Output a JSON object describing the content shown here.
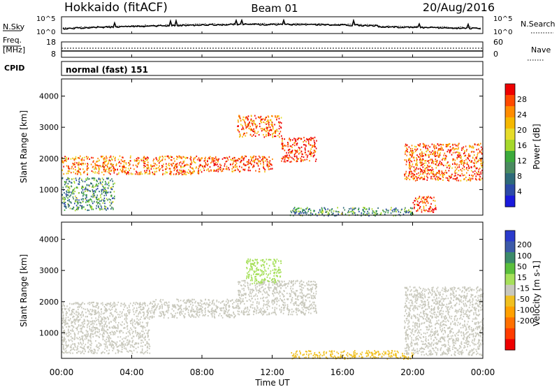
{
  "header": {
    "station": "Hokkaido (fitACF)",
    "beam": "Beam 01",
    "date": "20/Aug/2016"
  },
  "noise_panel": {
    "left_label": "N.Sky",
    "right_label": "N.Search",
    "ticks": [
      "10^5",
      "10^0"
    ]
  },
  "freq_panel": {
    "left_label_1": "Freq.",
    "left_label_2": "[MHz]",
    "left_ticks": [
      "18",
      "8"
    ],
    "right_label": "Nave",
    "right_ticks": [
      "60",
      "0"
    ]
  },
  "cpid_panel": {
    "label": "CPID",
    "mode": "normal (fast) 151"
  },
  "power_panel": {
    "ylabel": "Slant Range [km]",
    "colorbar_label": "Power [dB]",
    "colorbar_ticks": [
      "28",
      "24",
      "20",
      "16",
      "12",
      "8",
      "4"
    ],
    "colorbar_colors": [
      "#ee0000",
      "#ff4a00",
      "#ff8c00",
      "#f5b800",
      "#e6dc2a",
      "#a6d82c",
      "#3caa3c",
      "#4a8a60",
      "#2e6a7a",
      "#2c4aa8",
      "#1a1add"
    ]
  },
  "velocity_panel": {
    "ylabel": "Slant Range [km]",
    "colorbar_label": "Velocity [m s-1]",
    "colorbar_ticks": [
      "200",
      "100",
      "50",
      "15",
      "-15",
      "-50",
      "-100",
      "-200"
    ],
    "colorbar_colors": [
      "#2a3acc",
      "#3c5aa8",
      "#3c8a6a",
      "#5abf3c",
      "#a6e05a",
      "#c8c8bc",
      "#f0c020",
      "#ffa000",
      "#ff7000",
      "#ff3c00",
      "#ee0000"
    ]
  },
  "xaxis": {
    "label": "Time UT",
    "ticks": [
      "00:00",
      "04:00",
      "08:00",
      "12:00",
      "16:00",
      "20:00",
      "00:00"
    ]
  },
  "chart_data": [
    {
      "type": "heatmap",
      "title": "Hokkaido (fitACF) Beam 01 20/Aug/2016",
      "xlabel": "Time UT",
      "ylabel": "Slant Range [km]",
      "colorbar_label": "Power [dB]",
      "xlim": [
        0,
        24
      ],
      "ylim": [
        180,
        4550
      ],
      "yticks": [
        1000,
        2000,
        3000,
        4000
      ],
      "clim": [
        0,
        30
      ],
      "regions": [
        {
          "t0": 0.0,
          "t1": 3.0,
          "r_lo": 1500,
          "r_hi": 2100,
          "db": 23
        },
        {
          "t0": 0.0,
          "t1": 3.0,
          "r_lo": 350,
          "r_hi": 1400,
          "db": 10
        },
        {
          "t0": 3.0,
          "t1": 8.0,
          "r_lo": 1500,
          "r_hi": 2100,
          "db": 24
        },
        {
          "t0": 8.0,
          "t1": 12.0,
          "r_lo": 1600,
          "r_hi": 2100,
          "db": 26
        },
        {
          "t0": 10.0,
          "t1": 12.5,
          "r_lo": 2700,
          "r_hi": 3400,
          "db": 25
        },
        {
          "t0": 12.5,
          "t1": 14.5,
          "r_lo": 1900,
          "r_hi": 2700,
          "db": 27
        },
        {
          "t0": 13.0,
          "t1": 20.0,
          "r_lo": 180,
          "r_hi": 450,
          "db": 10
        },
        {
          "t0": 19.5,
          "t1": 24.0,
          "r_lo": 1300,
          "r_hi": 2500,
          "db": 25
        },
        {
          "t0": 20.0,
          "t1": 21.3,
          "r_lo": 300,
          "r_hi": 800,
          "db": 27
        }
      ]
    },
    {
      "type": "heatmap",
      "title": "Hokkaido (fitACF) Beam 01 20/Aug/2016",
      "xlabel": "Time UT",
      "ylabel": "Slant Range [km]",
      "colorbar_label": "Velocity [m s-1]",
      "xlim": [
        0,
        24
      ],
      "ylim": [
        180,
        4550
      ],
      "yticks": [
        1000,
        2000,
        3000,
        4000
      ],
      "clim": [
        -250,
        250
      ],
      "regions": [
        {
          "t0": 0.0,
          "t1": 5.0,
          "r_lo": 350,
          "r_hi": 2000,
          "v": 0
        },
        {
          "t0": 5.0,
          "t1": 10.0,
          "r_lo": 1500,
          "r_hi": 2100,
          "v": 0
        },
        {
          "t0": 10.0,
          "t1": 14.5,
          "r_lo": 1600,
          "r_hi": 2700,
          "v": 0
        },
        {
          "t0": 10.5,
          "t1": 12.5,
          "r_lo": 2600,
          "r_hi": 3400,
          "v": 40
        },
        {
          "t0": 13.0,
          "t1": 20.0,
          "r_lo": 180,
          "r_hi": 450,
          "v": -40
        },
        {
          "t0": 19.5,
          "t1": 24.0,
          "r_lo": 300,
          "r_hi": 2500,
          "v": 0
        }
      ]
    }
  ]
}
